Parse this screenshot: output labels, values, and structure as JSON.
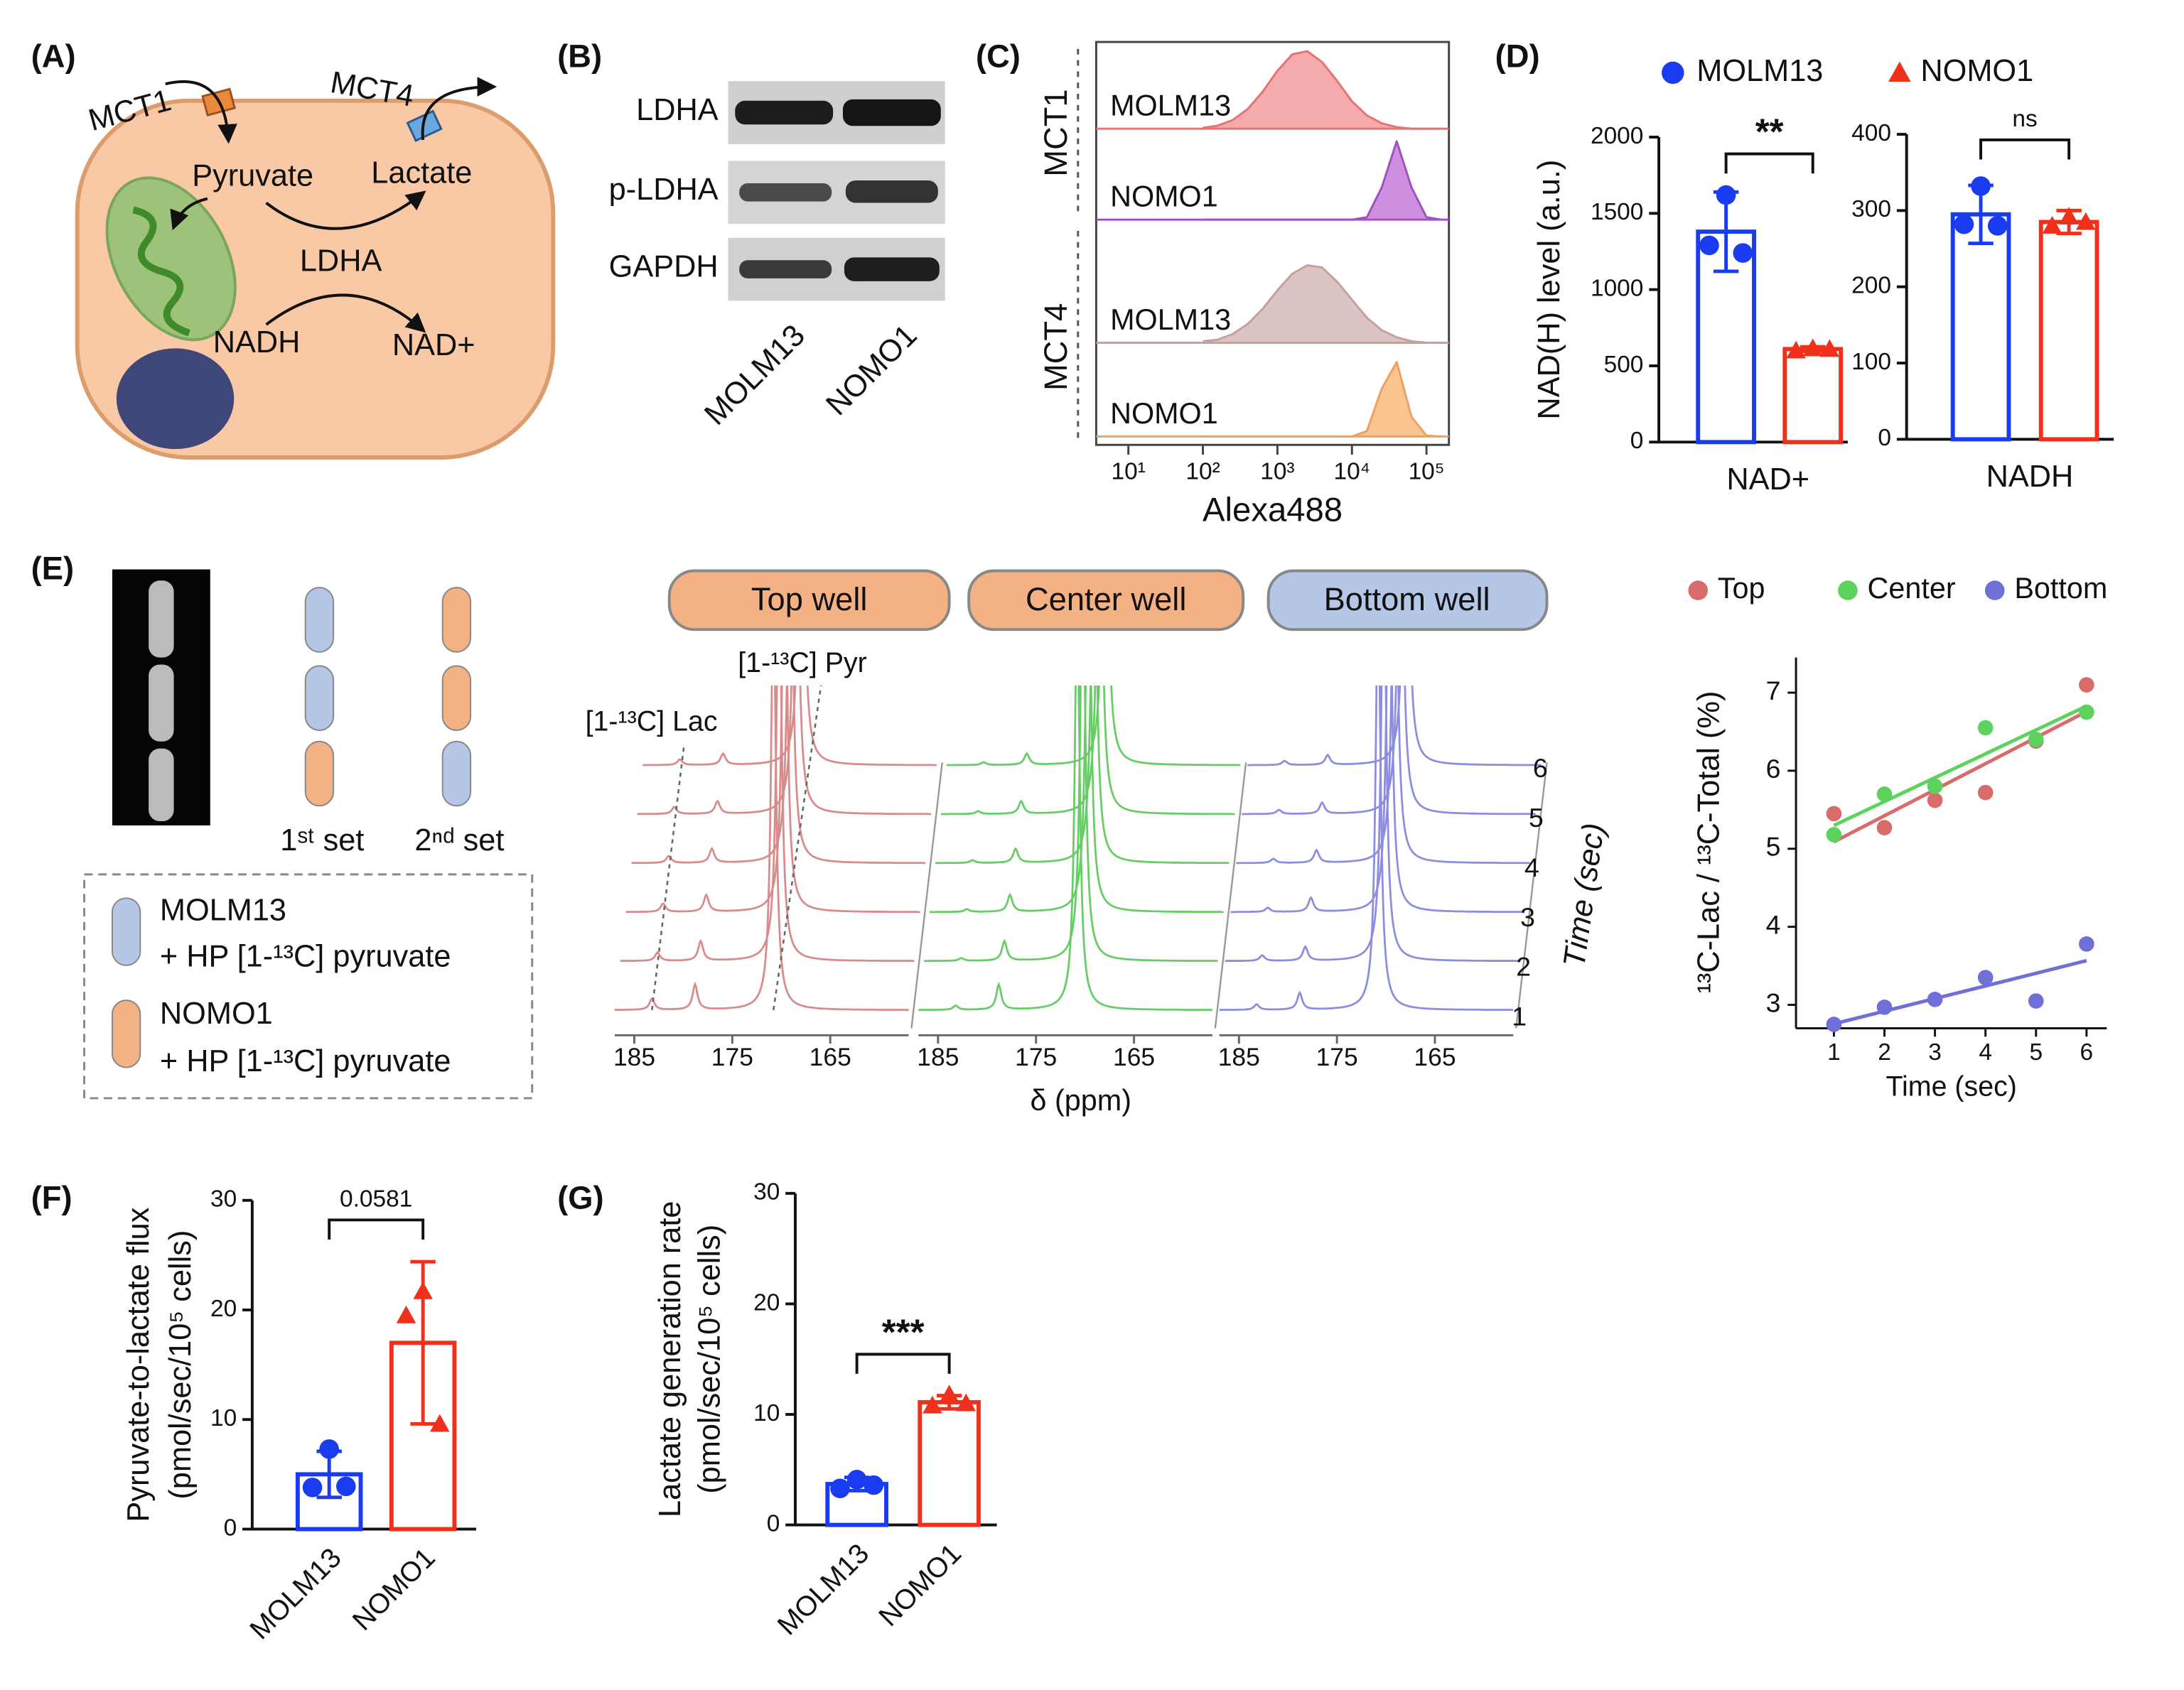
{
  "panel_labels": [
    "(A)",
    "(B)",
    "(C)",
    "(D)",
    "(E)",
    "(F)",
    "(G)"
  ],
  "diagram": {
    "labels": [
      "MCT1",
      "MCT4",
      "Pyruvate",
      "Lactate",
      "LDHA",
      "NADH",
      "NAD+"
    ]
  },
  "blot": {
    "proteins": [
      "LDHA",
      "p-LDHA",
      "GAPDH"
    ],
    "lanes": [
      "MOLM13",
      "NOMO1"
    ]
  },
  "setup": {
    "sets": [
      "1ˢᵗ set",
      "2ⁿᵈ set"
    ],
    "legend": [
      "MOLM13",
      "+ HP [1-¹³C] pyruvate",
      "NOMO1",
      "+ HP [1-¹³C] pyruvate"
    ]
  },
  "chart_data": [
    {
      "type": "density",
      "x_label": "Alexa488",
      "log_x": true,
      "xlim": [
        3.7,
        200000
      ],
      "xticks": [
        {
          "value": 10,
          "label": "10¹"
        },
        {
          "value": 100,
          "label": "10²"
        },
        {
          "value": 1000,
          "label": "10³"
        },
        {
          "value": 10000,
          "label": "10⁴"
        },
        {
          "value": 100000,
          "label": "10⁵"
        }
      ],
      "x": [
        100,
        158,
        251,
        398,
        631,
        1000,
        1585,
        2512,
        3981,
        6310,
        10000,
        15849,
        25119,
        39811,
        63096,
        100000,
        158489
      ],
      "groups": [
        {
          "name": "MCT1",
          "series": [
            {
              "name": "MOLM13",
              "color": "#e57373",
              "fill": "#f5abab",
              "values": [
                1,
                4,
                11,
                25,
                47,
                74,
                95,
                99,
                85,
                61,
                35,
                17,
                7,
                2,
                0,
                0,
                0
              ]
            },
            {
              "name": "NOMO1",
              "color": "#a050c0",
              "fill": "#cf8fe0",
              "values": [
                0,
                0,
                0,
                0,
                0,
                0,
                0,
                0,
                0,
                0,
                0,
                3,
                41,
                100,
                41,
                3,
                0
              ]
            }
          ]
        },
        {
          "name": "MCT4",
          "series": [
            {
              "name": "MOLM13",
              "color": "#c4a0a0",
              "fill": "#dcc4c4",
              "values": [
                2,
                4,
                11,
                24,
                43,
                67,
                88,
                99,
                96,
                78,
                55,
                32,
                16,
                7,
                2,
                0,
                0
              ]
            },
            {
              "name": "NOMO1",
              "color": "#eea060",
              "fill": "#f9c48f",
              "values": [
                0,
                0,
                0,
                0,
                0,
                0,
                0,
                0,
                0,
                0,
                0,
                7,
                61,
                95,
                25,
                1,
                0
              ]
            }
          ]
        }
      ]
    },
    {
      "type": "bar",
      "y_label": "NAD(H) level (a.u.)",
      "categories": [
        "NAD+"
      ],
      "ylim": [
        0,
        2000
      ],
      "yticks": [
        0,
        500,
        1000,
        1500,
        2000
      ],
      "annotation": "**",
      "series": [
        {
          "name": "MOLM13",
          "color": "#1a3cf0",
          "marker": "circle",
          "values": [
            1380
          ],
          "errors": [
            260
          ],
          "points": [
            [
              1620,
              1290,
              1240
            ]
          ]
        },
        {
          "name": "NOMO1",
          "color": "#f0301a",
          "marker": "triangle",
          "values": [
            610
          ],
          "errors": [
            15
          ],
          "points": [
            [
              615,
              600,
              610
            ]
          ]
        }
      ]
    },
    {
      "type": "bar",
      "categories": [
        "NADH"
      ],
      "ylim": [
        0,
        400
      ],
      "yticks": [
        0,
        100,
        200,
        300,
        400
      ],
      "annotation": "ns",
      "series": [
        {
          "color": "#1a3cf0",
          "marker": "circle",
          "values": [
            295
          ],
          "errors": [
            38
          ],
          "points": [
            [
              332,
              282,
              280
            ]
          ]
        },
        {
          "color": "#f0301a",
          "marker": "triangle",
          "values": [
            285
          ],
          "errors": [
            15
          ],
          "points": [
            [
              292,
              280,
              285
            ]
          ]
        }
      ]
    },
    {
      "type": "spectra",
      "x_label": "δ (ppm)",
      "y_label": "Time (sec)",
      "xlim": [
        187,
        157
      ],
      "xticks": [
        185,
        175,
        165
      ],
      "rows": [
        1,
        2,
        3,
        4,
        5,
        6
      ],
      "peak_ppm": [
        183.2,
        178.8,
        170.8
      ],
      "annotations": [
        "[1-¹³C] Lac",
        "[1-¹³C] Pyr"
      ],
      "series": [
        {
          "name": "Top well",
          "button_color": "#f4b183",
          "color": "#d98a8a",
          "heights": [
            [
              8,
              6,
              6,
              5,
              5,
              4
            ],
            [
              18,
              14,
              12,
              10,
              9,
              8
            ],
            [
              300,
              300,
              300,
              300,
              300,
              300
            ]
          ]
        },
        {
          "name": "Center well",
          "button_color": "#f4b183",
          "color": "#66cc66",
          "heights": [
            [
              3,
              2,
              2,
              2,
              2,
              2
            ],
            [
              18,
              14,
              12,
              10,
              9,
              8
            ],
            [
              300,
              300,
              300,
              300,
              300,
              300
            ]
          ]
        },
        {
          "name": "Bottom well",
          "button_color": "#b4c7e7",
          "color": "#8c8ce0",
          "heights": [
            [
              4,
              4,
              3,
              3,
              3,
              3
            ],
            [
              12,
              10,
              10,
              9,
              8,
              7
            ],
            [
              300,
              300,
              300,
              300,
              300,
              300
            ]
          ]
        }
      ]
    },
    {
      "type": "scatter",
      "x_label": "Time (sec)",
      "y_label": "¹³C-Lac / ¹³C-Total (%)",
      "fit": "linear",
      "x": [
        1,
        2,
        3,
        4,
        5,
        6
      ],
      "xlim": [
        0.25,
        6.4
      ],
      "xticks": [
        1,
        2,
        3,
        4,
        5,
        6
      ],
      "ylim": [
        2.7,
        7.45
      ],
      "yticks": [
        3,
        4,
        5,
        6,
        7
      ],
      "series": [
        {
          "name": "Top",
          "color": "#d96b6b",
          "values": [
            5.45,
            5.27,
            5.62,
            5.72,
            6.38,
            7.1
          ]
        },
        {
          "name": "Center",
          "color": "#5dd35d",
          "values": [
            5.18,
            5.7,
            5.8,
            6.55,
            6.4,
            6.75
          ]
        },
        {
          "name": "Bottom",
          "color": "#6f6fd8",
          "values": [
            2.75,
            2.97,
            3.07,
            3.35,
            3.05,
            3.78
          ]
        }
      ]
    },
    {
      "type": "bar",
      "y_label": [
        "Pyruvate-to-lactate flux",
        "(pmol/sec/10⁵ cells)"
      ],
      "categories": [
        "MOLM13",
        "NOMO1"
      ],
      "ylim": [
        0,
        30
      ],
      "yticks": [
        0,
        10,
        20,
        30
      ],
      "annotation": "0.0581",
      "colors": [
        "#1a3cf0",
        "#f0301a"
      ],
      "markers": [
        "circle",
        "triangle"
      ],
      "values": [
        5.0,
        17.0
      ],
      "errors": [
        2.1,
        7.4
      ],
      "points": [
        [
          7.3,
          3.8,
          3.9
        ],
        [
          21.7,
          19.5,
          9.6
        ]
      ]
    },
    {
      "type": "bar",
      "y_label": [
        "Lactate generation rate",
        "(pmol/sec/10⁵ cells)"
      ],
      "categories": [
        "MOLM13",
        "NOMO1"
      ],
      "ylim": [
        0,
        30
      ],
      "yticks": [
        0,
        10,
        20,
        30
      ],
      "annotation": "***",
      "colors": [
        "#1a3cf0",
        "#f0301a"
      ],
      "markers": [
        "circle",
        "triangle"
      ],
      "values": [
        3.7,
        11.1
      ],
      "errors": [
        0.6,
        0.6
      ],
      "points": [
        [
          4.1,
          3.3,
          3.6
        ],
        [
          11.8,
          10.8,
          11.0
        ]
      ]
    }
  ]
}
